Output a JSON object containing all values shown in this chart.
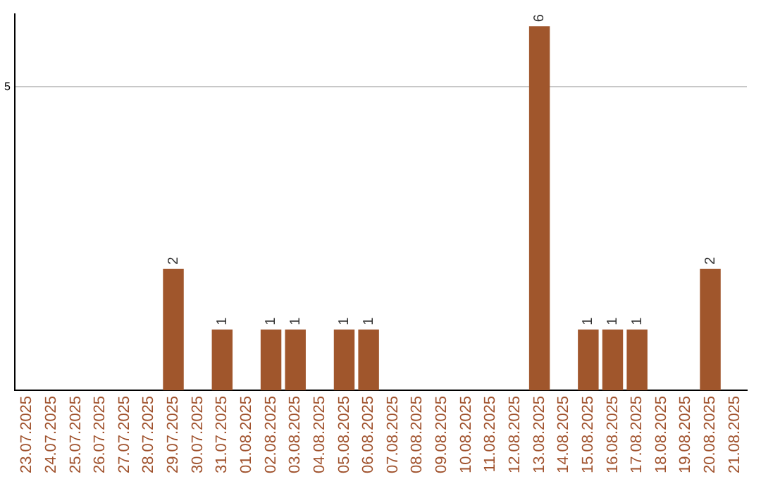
{
  "chart_data": {
    "type": "bar",
    "categories": [
      "23.07.2025",
      "24.07.2025",
      "25.07.2025",
      "26.07.2025",
      "27.07.2025",
      "28.07.2025",
      "29.07.2025",
      "30.07.2025",
      "31.07.2025",
      "01.08.2025",
      "02.08.2025",
      "03.08.2025",
      "04.08.2025",
      "05.08.2025",
      "06.08.2025",
      "07.08.2025",
      "08.08.2025",
      "09.08.2025",
      "10.08.2025",
      "11.08.2025",
      "12.08.2025",
      "13.08.2025",
      "14.08.2025",
      "15.08.2025",
      "16.08.2025",
      "17.08.2025",
      "18.08.2025",
      "19.08.2025",
      "20.08.2025",
      "21.08.2025"
    ],
    "values": [
      0,
      0,
      0,
      0,
      0,
      0,
      2,
      0,
      1,
      0,
      1,
      1,
      0,
      1,
      1,
      0,
      0,
      0,
      0,
      0,
      0,
      6,
      0,
      1,
      1,
      1,
      0,
      0,
      2,
      0
    ],
    "value_labels": [
      null,
      null,
      null,
      null,
      null,
      null,
      "2",
      null,
      "1",
      null,
      "1",
      "1",
      null,
      "1",
      "1",
      null,
      null,
      null,
      null,
      null,
      null,
      "6",
      null,
      "1",
      "1",
      "1",
      null,
      null,
      "2",
      null
    ],
    "color": "#a0562c",
    "ylim": [
      0,
      6.2
    ],
    "yticks": [
      5
    ],
    "grid": "y"
  }
}
